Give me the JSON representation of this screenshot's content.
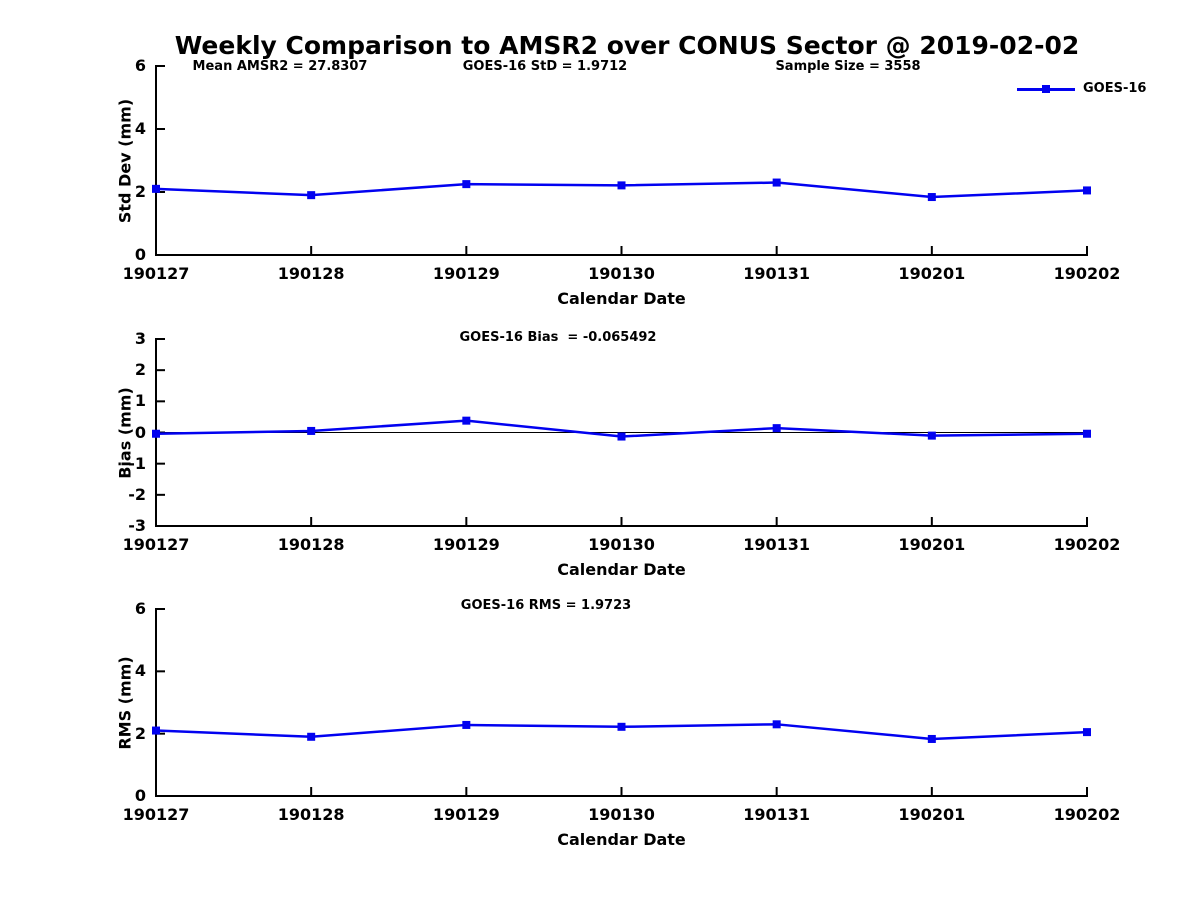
{
  "title": "Weekly Comparison to AMSR2 over CONUS Sector @ 2019-02-02",
  "colors": {
    "line": "#0202f0",
    "axis": "#000000"
  },
  "legend": {
    "label": "GOES-16",
    "position": "top-right"
  },
  "chart_data": [
    {
      "type": "line",
      "categories": [
        "190127",
        "190128",
        "190129",
        "190130",
        "190131",
        "190201",
        "190202"
      ],
      "series": [
        {
          "name": "GOES-16",
          "values": [
            2.1,
            1.9,
            2.25,
            2.21,
            2.3,
            1.84,
            2.05
          ]
        }
      ],
      "xlabel": "Calendar Date",
      "ylabel": "Std Dev (mm)",
      "ylim": [
        0,
        6
      ],
      "yticks": [
        0,
        2,
        4,
        6
      ],
      "grid": false,
      "annotations": [
        "Mean AMSR2 = 27.8307",
        "GOES-16 StD = 1.9712",
        "Sample Size = 3558"
      ],
      "legend": {
        "label": "GOES-16",
        "position": "top-right"
      }
    },
    {
      "type": "line",
      "categories": [
        "190127",
        "190128",
        "190129",
        "190130",
        "190131",
        "190201",
        "190202"
      ],
      "series": [
        {
          "name": "GOES-16",
          "values": [
            -0.04,
            0.05,
            0.38,
            -0.13,
            0.14,
            -0.1,
            -0.04
          ]
        }
      ],
      "xlabel": "Calendar Date",
      "ylabel": "Bias (mm)",
      "ylim": [
        -3,
        3
      ],
      "yticks": [
        -3,
        -2,
        -1,
        0,
        1,
        2,
        3
      ],
      "grid": false,
      "ref_line_y": 0,
      "annotations": [
        "GOES-16 Bias  = -0.065492"
      ]
    },
    {
      "type": "line",
      "categories": [
        "190127",
        "190128",
        "190129",
        "190130",
        "190131",
        "190201",
        "190202"
      ],
      "series": [
        {
          "name": "GOES-16",
          "values": [
            2.1,
            1.9,
            2.28,
            2.22,
            2.3,
            1.83,
            2.05
          ]
        }
      ],
      "xlabel": "Calendar Date",
      "ylabel": "RMS (mm)",
      "ylim": [
        0,
        6
      ],
      "yticks": [
        0,
        2,
        4,
        6
      ],
      "grid": false,
      "annotations": [
        "GOES-16 RMS = 1.9723"
      ]
    }
  ]
}
